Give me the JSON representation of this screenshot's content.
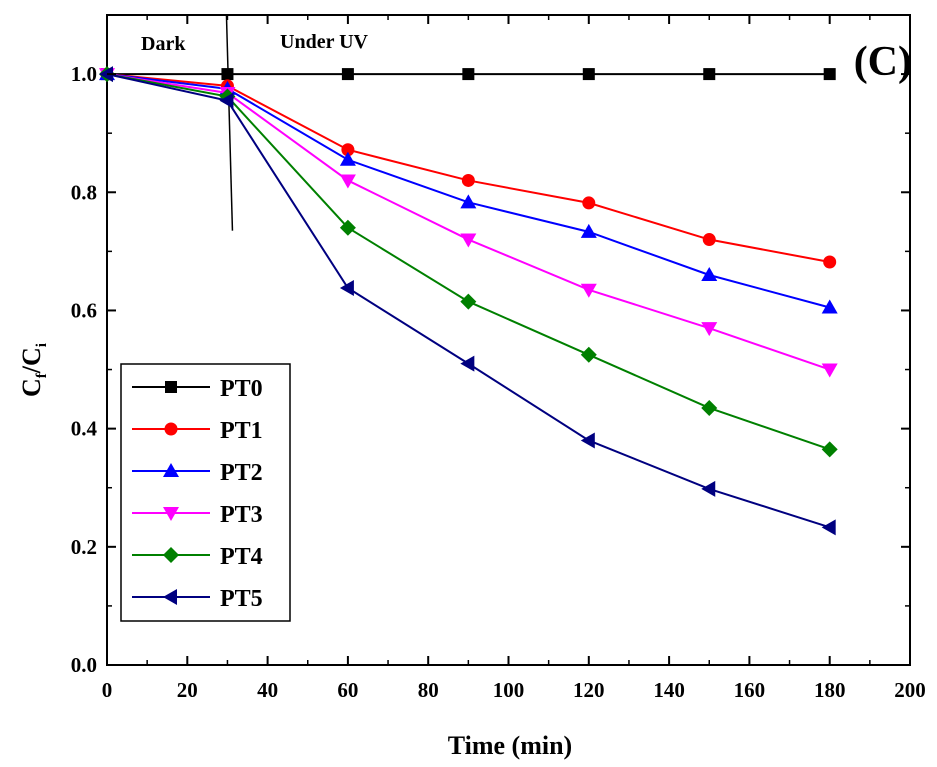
{
  "chart_data": {
    "type": "line",
    "panel_label": "(C)",
    "xlabel": "Time (min)",
    "ylabel_main": "C",
    "ylabel_sub1": "f",
    "ylabel_mid": "/C",
    "ylabel_sub2": "i",
    "xlim": [
      0,
      200
    ],
    "ylim": [
      0.0,
      1.1
    ],
    "xticks": [
      0,
      20,
      40,
      60,
      80,
      100,
      120,
      140,
      160,
      180,
      200
    ],
    "yticks": [
      0.0,
      0.2,
      0.4,
      0.6,
      0.8,
      1.0
    ],
    "xtick_labels": [
      "0",
      "20",
      "40",
      "60",
      "80",
      "100",
      "120",
      "140",
      "160",
      "180",
      "200"
    ],
    "ytick_labels": [
      "0.0",
      "0.2",
      "0.4",
      "0.6",
      "0.8",
      "1.0"
    ],
    "grid": false,
    "legend_position": "lower-left",
    "annotations": {
      "dark": "Dark",
      "under_uv": "Under UV"
    },
    "divider_x": 30,
    "x": [
      0,
      30,
      60,
      90,
      120,
      150,
      180
    ],
    "series": [
      {
        "name": "PT0",
        "color": "#000000",
        "marker": "square",
        "values": [
          1.0,
          1.0,
          1.0,
          1.0,
          1.0,
          1.0,
          1.0
        ]
      },
      {
        "name": "PT1",
        "color": "#ff0000",
        "marker": "circle",
        "values": [
          1.0,
          0.98,
          0.872,
          0.82,
          0.782,
          0.72,
          0.682
        ]
      },
      {
        "name": "PT2",
        "color": "#0000ff",
        "marker": "triangle-up",
        "values": [
          1.0,
          0.975,
          0.855,
          0.783,
          0.733,
          0.66,
          0.605
        ]
      },
      {
        "name": "PT3",
        "color": "#ff00ff",
        "marker": "triangle-down",
        "values": [
          1.0,
          0.968,
          0.82,
          0.72,
          0.635,
          0.57,
          0.5
        ]
      },
      {
        "name": "PT4",
        "color": "#008000",
        "marker": "diamond",
        "values": [
          1.0,
          0.962,
          0.74,
          0.615,
          0.525,
          0.435,
          0.365
        ]
      },
      {
        "name": "PT5",
        "color": "#000080",
        "marker": "triangle-left",
        "values": [
          1.0,
          0.955,
          0.638,
          0.51,
          0.38,
          0.298,
          0.233
        ]
      }
    ]
  }
}
